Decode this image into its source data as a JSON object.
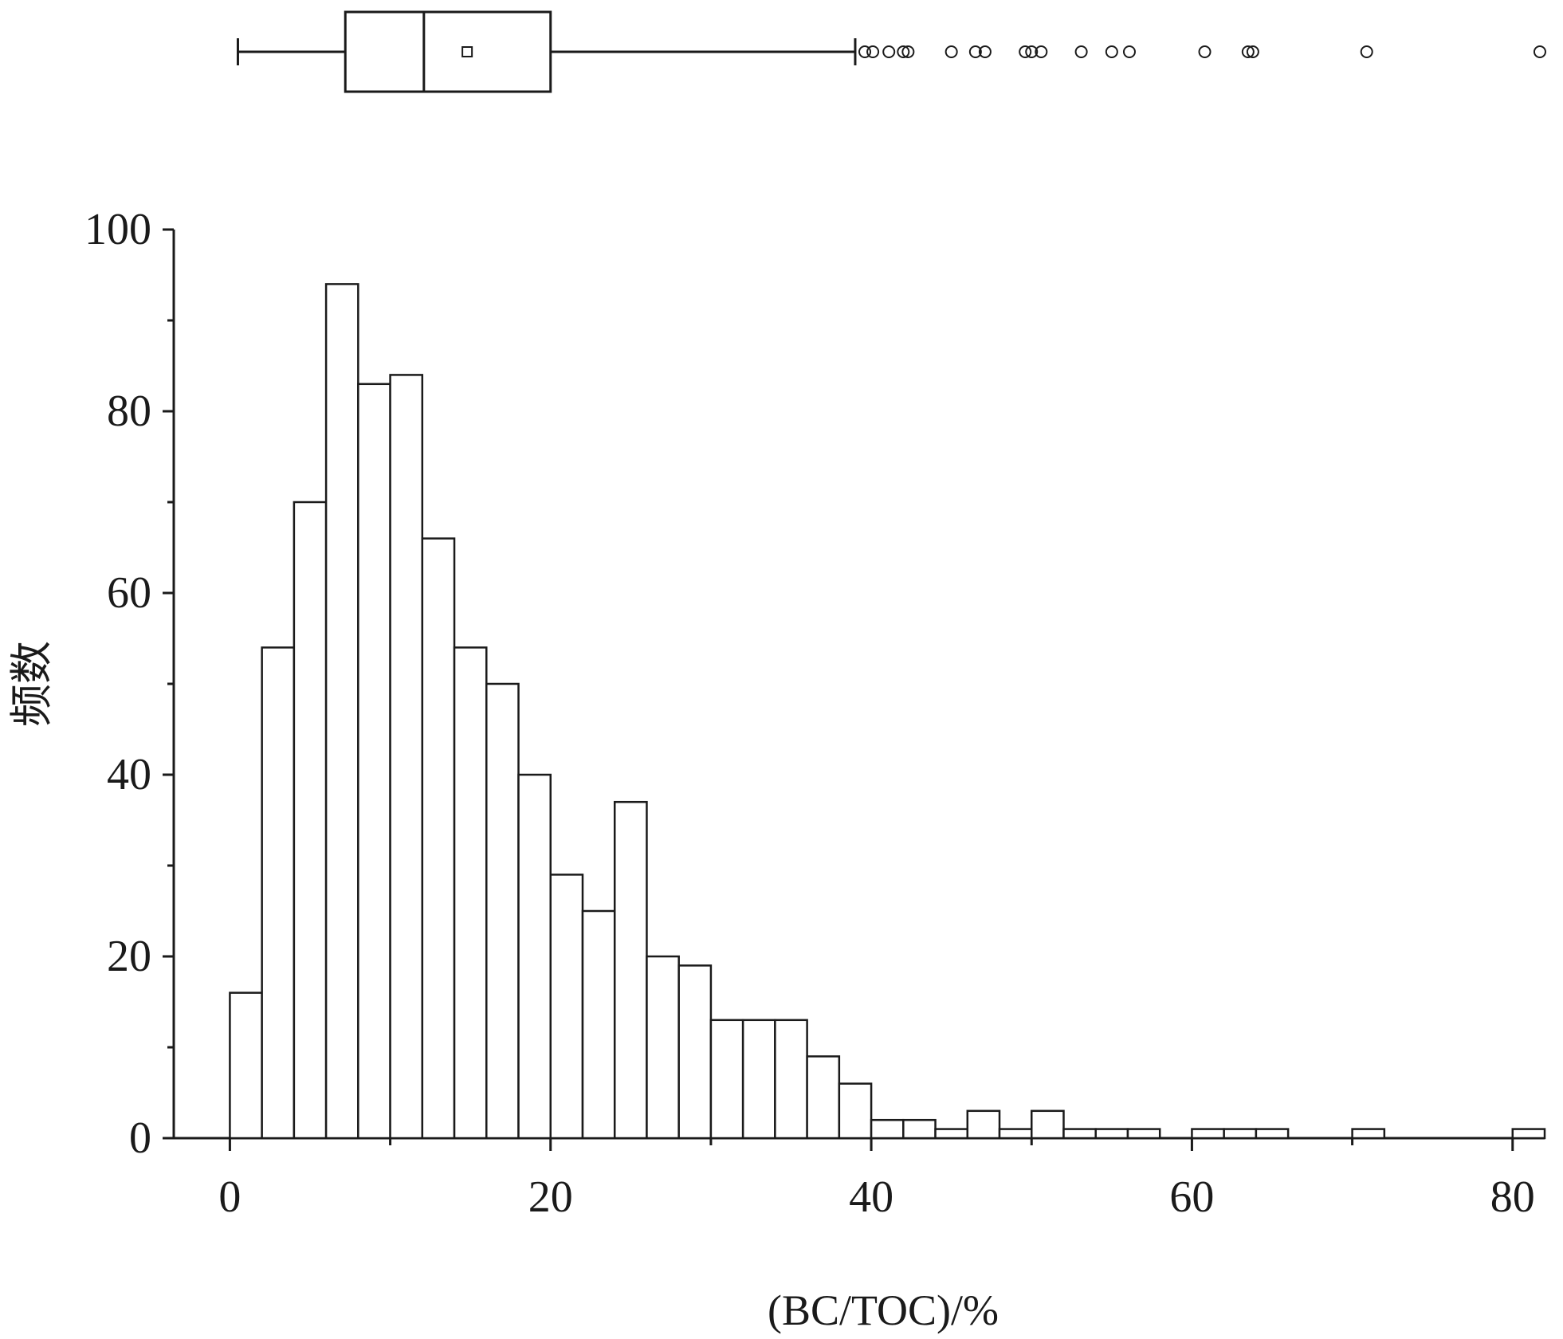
{
  "chart_data": [
    {
      "type": "box",
      "orientation": "horizontal",
      "whisker_low": 0.5,
      "q1": 7.2,
      "median": 12.1,
      "q3": 20.0,
      "whisker_high": 39.0,
      "mean": 14.8,
      "outliers": [
        39.6,
        40.1,
        41.1,
        42.0,
        42.3,
        45.0,
        46.5,
        47.1,
        49.6,
        50.0,
        50.6,
        53.1,
        55.0,
        56.1,
        60.8,
        63.5,
        63.8,
        70.9,
        81.7
      ]
    },
    {
      "type": "histogram",
      "bin_width": 2,
      "bin_start": 0,
      "counts": [
        16,
        54,
        70,
        94,
        83,
        84,
        66,
        54,
        50,
        40,
        29,
        25,
        37,
        20,
        19,
        13,
        13,
        13,
        9,
        6,
        2,
        2,
        1,
        3,
        1,
        3,
        1,
        1,
        1,
        0,
        1,
        1,
        1,
        0,
        0,
        1,
        0,
        0,
        0,
        0,
        1
      ],
      "xlabel": "(BC/TOC)/%",
      "ylabel": "频数",
      "xlim": [
        -3.5,
        82
      ],
      "ylim": [
        0,
        100
      ],
      "xticks": [
        "0",
        "20",
        "40",
        "60",
        "80"
      ],
      "yticks": [
        "0",
        "20",
        "40",
        "60",
        "80",
        "100"
      ]
    }
  ]
}
